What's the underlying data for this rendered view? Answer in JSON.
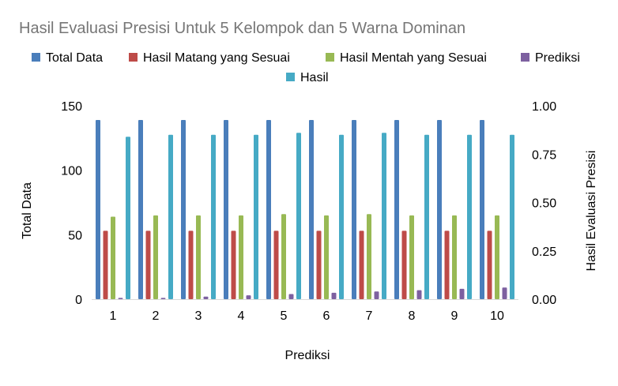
{
  "chart_data": {
    "type": "bar",
    "title": "Hasil Evaluasi Presisi Untuk 5 Kelompok dan 5 Warna Dominan",
    "xlabel": "Prediksi",
    "ylabel": "Total Data",
    "y2label": "Hasil Evaluasi Presisi",
    "categories": [
      "1",
      "2",
      "3",
      "4",
      "5",
      "6",
      "7",
      "8",
      "9",
      "10"
    ],
    "ylim": [
      0,
      150
    ],
    "yticks": [
      "0",
      "50",
      "100",
      "150"
    ],
    "y2lim": [
      0,
      1
    ],
    "y2ticks": [
      "0.00",
      "0.25",
      "0.50",
      "0.75",
      "1.00"
    ],
    "grid": false,
    "legend_position": "top",
    "series": [
      {
        "name": "Total Data",
        "axis": "left",
        "color": "#4a7ebb",
        "values": [
          139,
          139,
          139,
          139,
          139,
          139,
          139,
          139,
          139,
          139
        ]
      },
      {
        "name": "Hasil Matang yang Sesuai",
        "axis": "left",
        "color": "#be4b48",
        "values": [
          53,
          53,
          53,
          53,
          53,
          53,
          53,
          53,
          53,
          53
        ]
      },
      {
        "name": "Hasil Mentah yang Sesuai",
        "axis": "left",
        "color": "#98b954",
        "values": [
          64,
          65,
          65,
          65,
          66,
          65,
          66,
          65,
          65,
          65
        ]
      },
      {
        "name": "Prediksi",
        "axis": "left",
        "color": "#7d60a0",
        "values": [
          1,
          1,
          2,
          3,
          4,
          5,
          6,
          7,
          8,
          9
        ]
      },
      {
        "name": "Hasil",
        "axis": "right",
        "color": "#46aac5",
        "values": [
          0.84,
          0.85,
          0.85,
          0.85,
          0.86,
          0.85,
          0.86,
          0.85,
          0.85,
          0.85
        ]
      }
    ]
  }
}
